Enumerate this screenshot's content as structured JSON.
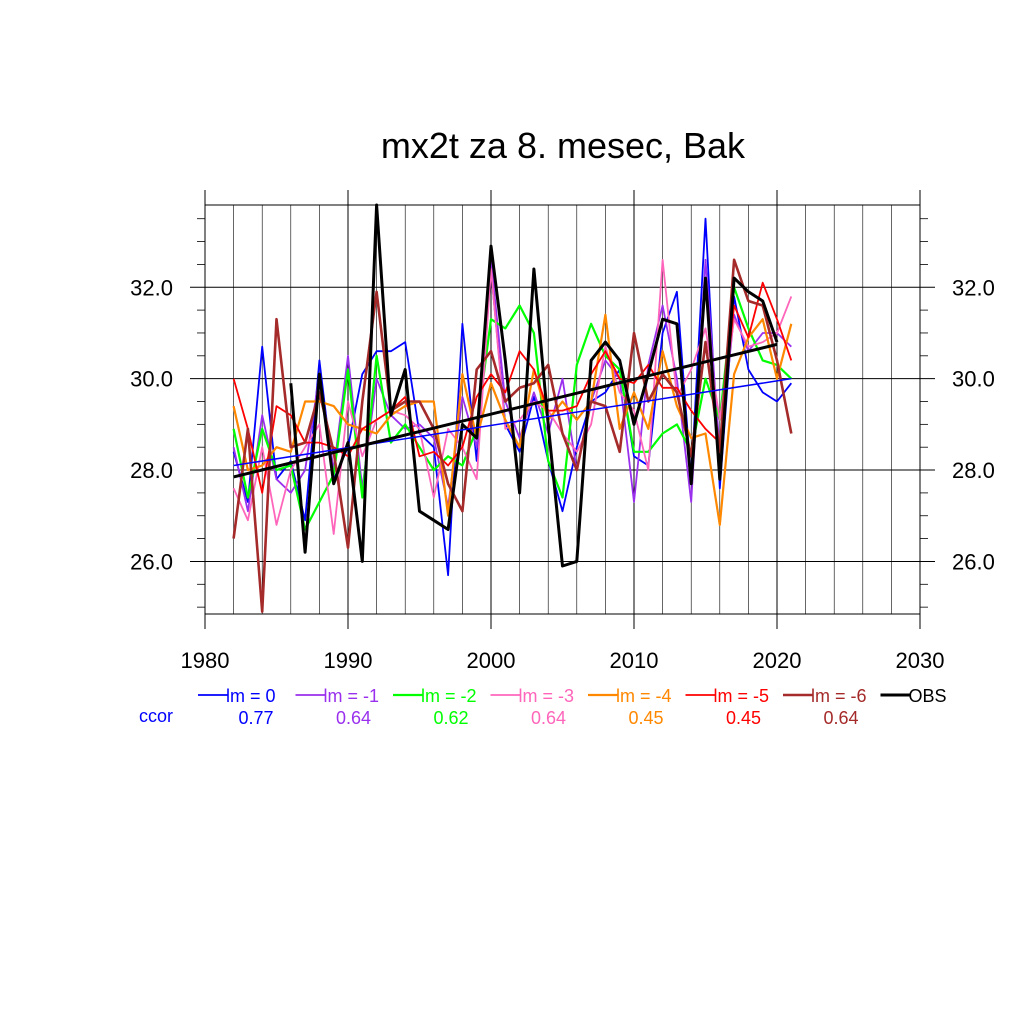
{
  "chart_data": {
    "type": "line",
    "title": "mx2t za 8. mesec, Bak",
    "xlabel": "",
    "ylabel": "",
    "xlim": [
      1980,
      2030
    ],
    "ylim": [
      24.85,
      33.8
    ],
    "x_ticks": [
      1980,
      1990,
      2000,
      2010,
      2020,
      2030
    ],
    "y_ticks": [
      26.0,
      28.0,
      30.0,
      32.0
    ],
    "y_tick_labels": [
      "26.0",
      "28.0",
      "30.0",
      "32.0"
    ],
    "grid": true,
    "ccor_label": "ccor",
    "x": [
      1982,
      1983,
      1984,
      1985,
      1986,
      1987,
      1988,
      1989,
      1990,
      1991,
      1992,
      1993,
      1994,
      1995,
      1996,
      1997,
      1998,
      1999,
      2000,
      2001,
      2002,
      2003,
      2004,
      2005,
      2006,
      2007,
      2008,
      2009,
      2010,
      2011,
      2012,
      2013,
      2014,
      2015,
      2016,
      2017,
      2018,
      2019,
      2020,
      2021
    ],
    "series": [
      {
        "name": "lm = 0",
        "color": "#0000ff",
        "width": 1.8,
        "ccor": "0.77",
        "values": [
          28.4,
          27.3,
          30.7,
          27.8,
          28.2,
          26.9,
          30.4,
          27.8,
          28.5,
          30.1,
          30.6,
          30.6,
          30.8,
          28.8,
          28.5,
          25.7,
          31.2,
          28.2,
          32.4,
          29.0,
          28.4,
          29.6,
          28.2,
          27.1,
          28.5,
          29.5,
          29.7,
          30.2,
          28.3,
          28.1,
          31.0,
          31.9,
          27.8,
          33.5,
          27.6,
          31.8,
          30.2,
          29.7,
          29.5,
          29.9
        ]
      },
      {
        "name": "lm = -1",
        "color": "#9a30ee",
        "width": 1.8,
        "ccor": "0.64",
        "values": [
          28.5,
          27.1,
          29.2,
          27.8,
          27.5,
          28.0,
          30.1,
          28.0,
          30.5,
          27.6,
          30.0,
          29.2,
          28.9,
          29.0,
          28.7,
          27.2,
          29.6,
          28.5,
          32.6,
          29.5,
          28.7,
          29.7,
          28.8,
          30.0,
          28.0,
          29.5,
          30.4,
          30.0,
          27.3,
          30.3,
          31.6,
          30.0,
          27.3,
          32.6,
          28.4,
          31.4,
          30.6,
          31.0,
          31.0,
          30.7
        ]
      },
      {
        "name": "lm = -2",
        "color": "#00ff00",
        "width": 2.2,
        "ccor": "0.62",
        "values": [
          28.9,
          27.4,
          28.9,
          28.0,
          28.1,
          26.7,
          27.3,
          27.9,
          30.2,
          27.4,
          30.5,
          28.6,
          29.0,
          28.5,
          28.0,
          28.3,
          28.1,
          28.9,
          31.3,
          31.1,
          31.6,
          31.0,
          28.2,
          27.4,
          30.3,
          31.2,
          30.5,
          30.2,
          28.4,
          28.4,
          28.8,
          29.0,
          28.4,
          30.0,
          29.1,
          32.0,
          31.1,
          30.4,
          30.3,
          30.0
        ]
      },
      {
        "name": "lm = -3",
        "color": "#ff66bb",
        "width": 1.8,
        "ccor": "0.64",
        "values": [
          27.6,
          26.9,
          28.5,
          26.8,
          28.0,
          28.5,
          29.0,
          26.6,
          29.5,
          28.3,
          29.1,
          29.3,
          29.2,
          28.9,
          27.4,
          28.9,
          28.5,
          27.8,
          32.4,
          28.9,
          29.1,
          29.5,
          29.3,
          28.8,
          28.4,
          29.0,
          30.7,
          29.7,
          29.3,
          28.0,
          32.6,
          29.6,
          30.2,
          31.1,
          29.1,
          31.3,
          30.7,
          30.8,
          31.0,
          31.8
        ]
      },
      {
        "name": "lm = -4",
        "color": "#ff8800",
        "width": 2.2,
        "ccor": "0.45",
        "values": [
          29.4,
          28.0,
          28.1,
          28.5,
          28.4,
          29.5,
          29.5,
          29.4,
          29.0,
          28.9,
          28.8,
          29.2,
          29.4,
          29.5,
          29.5,
          27.0,
          30.1,
          28.7,
          29.9,
          29.1,
          28.5,
          30.2,
          29.1,
          29.5,
          29.1,
          29.5,
          31.4,
          28.9,
          29.7,
          28.9,
          30.6,
          29.4,
          28.7,
          28.8,
          26.8,
          30.1,
          30.9,
          31.3,
          30.0,
          31.2
        ]
      },
      {
        "name": "lm = -5",
        "color": "#ff0000",
        "width": 1.8,
        "ccor": "0.45",
        "values": [
          30.0,
          28.9,
          27.5,
          29.4,
          29.2,
          28.6,
          28.6,
          28.5,
          28.3,
          28.9,
          29.1,
          29.3,
          29.6,
          28.3,
          28.4,
          28.1,
          28.5,
          29.6,
          30.1,
          29.7,
          30.6,
          30.2,
          29.3,
          29.3,
          29.4,
          30.1,
          30.6,
          30.0,
          29.9,
          30.3,
          29.8,
          29.8,
          29.3,
          28.9,
          28.6,
          31.6,
          30.9,
          32.1,
          31.3,
          30.4
        ]
      },
      {
        "name": "lm = -6",
        "color": "#a52a2a",
        "width": 2.6,
        "ccor": "0.64",
        "values": [
          26.5,
          28.9,
          24.9,
          31.3,
          28.5,
          28.6,
          29.7,
          28.4,
          26.3,
          29.5,
          31.9,
          29.3,
          29.5,
          29.5,
          28.9,
          27.7,
          27.1,
          30.2,
          30.6,
          29.5,
          29.8,
          29.9,
          30.3,
          28.8,
          28.0,
          29.5,
          29.4,
          28.4,
          31.0,
          29.5,
          30.1,
          29.7,
          28.3,
          30.8,
          28.4,
          32.6,
          31.7,
          31.6,
          30.4,
          28.8
        ]
      },
      {
        "name": "OBS",
        "color": "#000000",
        "width": 3.0,
        "ccor": "",
        "values": [
          null,
          null,
          null,
          null,
          29.9,
          26.2,
          30.1,
          27.7,
          28.6,
          26.0,
          33.8,
          29.2,
          30.2,
          27.1,
          26.9,
          26.7,
          29.0,
          28.7,
          32.9,
          30.4,
          27.5,
          32.4,
          29.0,
          25.9,
          26.0,
          30.4,
          30.8,
          30.4,
          29.0,
          30.1,
          31.3,
          31.2,
          27.7,
          32.2,
          27.8,
          32.2,
          31.9,
          31.7,
          30.8,
          null
        ]
      }
    ],
    "trend_lines": [
      {
        "color": "#0000ff",
        "width": 1.5,
        "x": [
          1982,
          2021
        ],
        "y": [
          28.1,
          30.0
        ]
      },
      {
        "color": "#000000",
        "width": 3.0,
        "x": [
          1982,
          2020
        ],
        "y": [
          27.85,
          30.75
        ]
      }
    ]
  }
}
